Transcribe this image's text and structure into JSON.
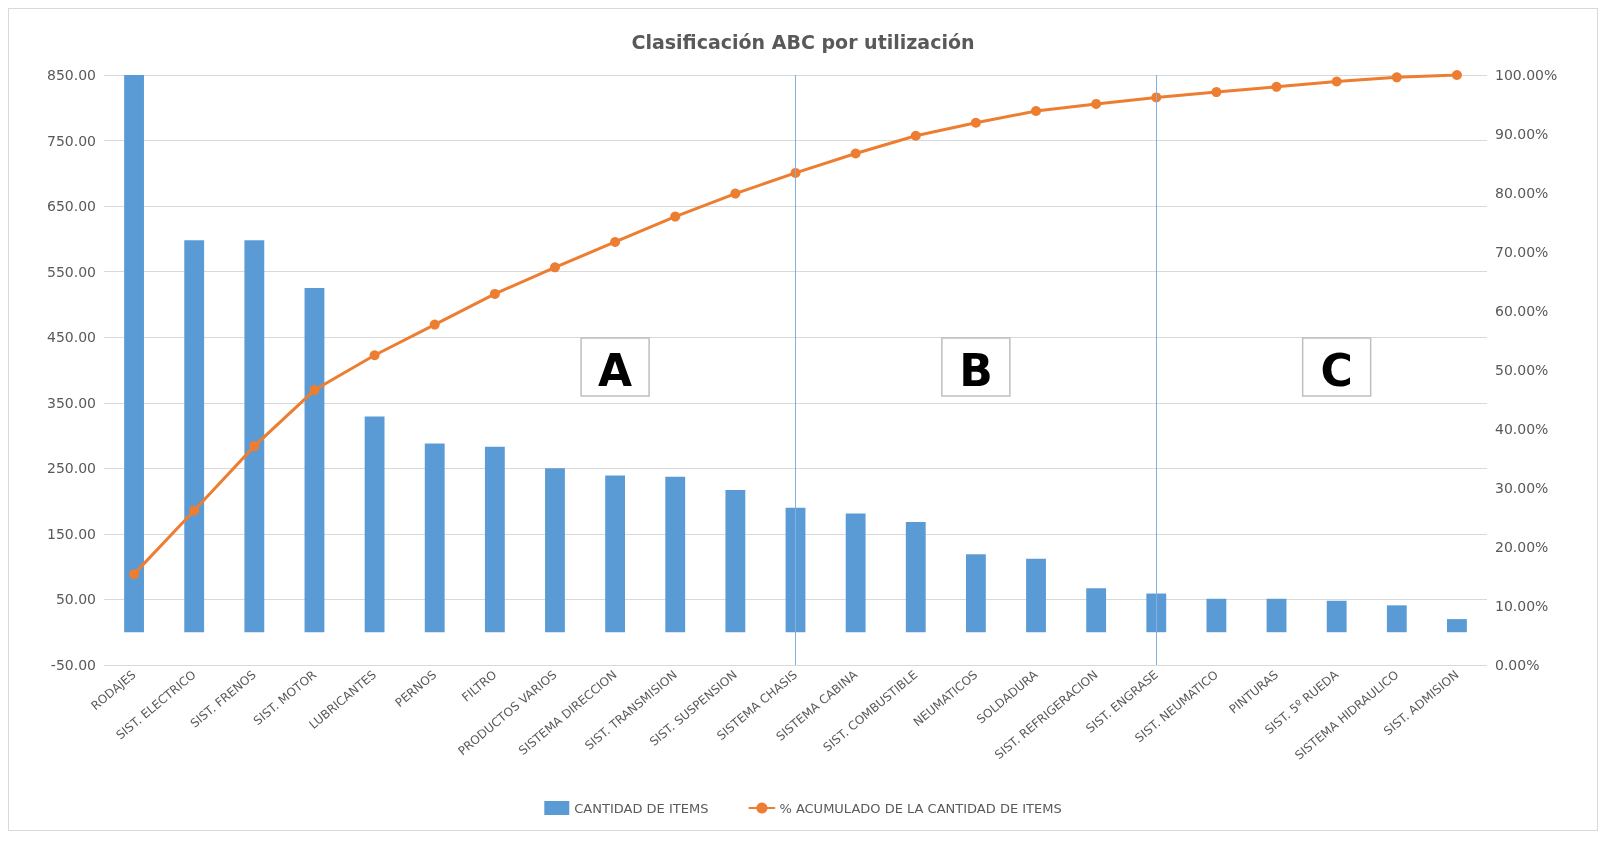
{
  "chart_data": {
    "type": "bar",
    "title": "Clasificación ABC por utilización",
    "categories": [
      "RODAJES",
      "SIST. ELECTRICO",
      "SIST. FRENOS",
      "SIST. MOTOR",
      "LUBRICANTES",
      "PERNOS",
      "FILTRO",
      "PRODUCTOS VARIOS",
      "SISTEMA DIRECCION",
      "SIST. TRANSMISION",
      "SIST. SUSPENSION",
      "SISTEMA CHASIS",
      "SISTEMA CABINA",
      "SIST. COMBUSTIBLE",
      "NEUMATICOS",
      "SOLDADURA",
      "SIST. REFRIGERACION",
      "SIST. ENGRASE",
      "SIST. NEUMATICO",
      "PINTURAS",
      "SIST. 5º RUEDA",
      "SISTEMA HIDRAULICO",
      "SIST. ADMISION"
    ],
    "series": [
      {
        "name": "CANTIDAD DE ITEMS",
        "color": "#5b9bd5",
        "values": [
          850,
          598,
          598,
          525,
          329,
          288,
          283,
          250,
          239,
          237,
          217,
          190,
          181,
          168,
          119,
          112,
          67,
          59,
          51,
          51,
          48,
          41,
          20
        ]
      },
      {
        "name": "% ACUMULADO DE LA CANTIDAD DE ITEMS",
        "type": "line",
        "axis": "y2",
        "color": "#ed7d31",
        "values": [
          15.4,
          26.2,
          37.1,
          46.6,
          52.5,
          57.7,
          62.9,
          67.4,
          71.7,
          76.0,
          79.9,
          83.4,
          86.7,
          89.7,
          91.9,
          93.9,
          95.1,
          96.2,
          97.1,
          98.0,
          98.9,
          99.6,
          100
        ]
      }
    ],
    "ylim": [
      -50,
      850
    ],
    "yticks": [
      {
        "value": -50,
        "label": "-50.00"
      },
      {
        "value": 50,
        "label": "50.00"
      },
      {
        "value": 150,
        "label": "150.00"
      },
      {
        "value": 250,
        "label": "250.00"
      },
      {
        "value": 350,
        "label": "350.00"
      },
      {
        "value": 450,
        "label": "450.00"
      },
      {
        "value": 550,
        "label": "550.00"
      },
      {
        "value": 650,
        "label": "650.00"
      },
      {
        "value": 750,
        "label": "750.00"
      },
      {
        "value": 850,
        "label": "850.00"
      }
    ],
    "y2lim": [
      0,
      100
    ],
    "y2ticks": [
      {
        "value": 0,
        "label": "0.00%"
      },
      {
        "value": 10,
        "label": "10.00%"
      },
      {
        "value": 20,
        "label": "20.00%"
      },
      {
        "value": 30,
        "label": "30.00%"
      },
      {
        "value": 40,
        "label": "40.00%"
      },
      {
        "value": 50,
        "label": "50.00%"
      },
      {
        "value": 60,
        "label": "60.00%"
      },
      {
        "value": 70,
        "label": "70.00%"
      },
      {
        "value": 80,
        "label": "80.00%"
      },
      {
        "value": 90,
        "label": "90.00%"
      },
      {
        "value": 100,
        "label": "100.00%"
      }
    ],
    "ref_lines": [
      {
        "axis": "x",
        "value": "SISTEMA CHASIS",
        "color": "#7fb0e0"
      },
      {
        "axis": "x",
        "value": "SIST. ENGRASE",
        "color": "#7fb0e0"
      }
    ],
    "annotations": [
      "A",
      "B",
      "C"
    ],
    "grid": "y",
    "legend": "bottom",
    "marker": "circle",
    "line_style": "solid"
  }
}
